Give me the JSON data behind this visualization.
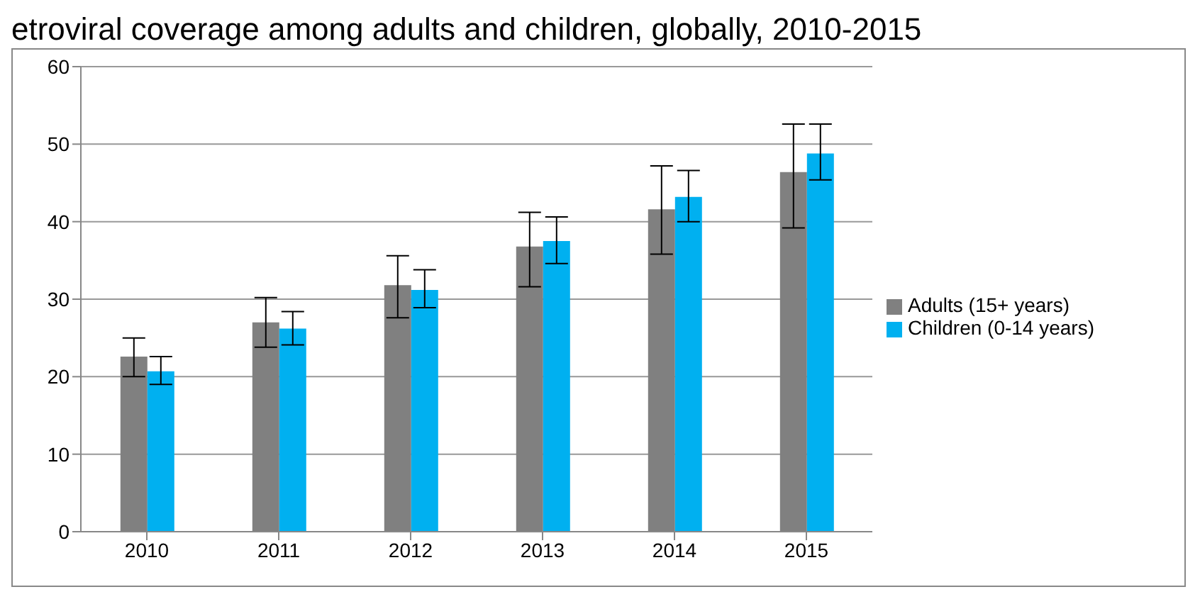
{
  "chart_data": {
    "type": "bar",
    "title": "etroviral coverage among adults and children, globally, 2010-2015",
    "categories": [
      "2010",
      "2011",
      "2012",
      "2013",
      "2014",
      "2015"
    ],
    "series": [
      {
        "name": "Adults (15+ years)",
        "color": "#808080",
        "values": [
          22.6,
          27,
          31.8,
          36.8,
          41.6,
          46.4
        ],
        "errors": [
          [
            20,
            25
          ],
          [
            23.8,
            30.2
          ],
          [
            27.6,
            35.6
          ],
          [
            31.6,
            41.2
          ],
          [
            35.8,
            47.2
          ],
          [
            39.2,
            52.6
          ]
        ]
      },
      {
        "name": "Children (0-14 years)",
        "color": "#00b0f0",
        "values": [
          20.7,
          26.2,
          31.2,
          37.5,
          43.2,
          48.8
        ],
        "errors": [
          [
            19,
            22.6
          ],
          [
            24.1,
            28.4
          ],
          [
            28.9,
            33.8
          ],
          [
            34.6,
            40.6
          ],
          [
            40,
            46.6
          ],
          [
            45.4,
            52.6
          ]
        ]
      }
    ],
    "ylim": [
      0,
      60
    ],
    "yticks": [
      0,
      10,
      20,
      30,
      40,
      50,
      60
    ],
    "grid": "y",
    "legend": "right"
  }
}
